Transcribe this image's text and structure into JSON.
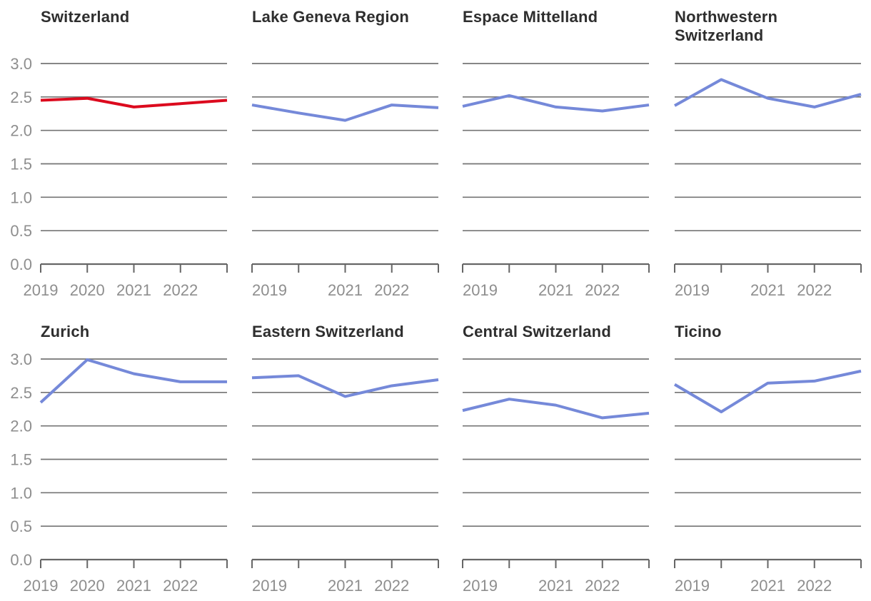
{
  "page": {
    "background": "#ffffff"
  },
  "styles": {
    "series_blue": "#7589D9",
    "highlight_red": "#DC0A1E",
    "gridline": "#747474",
    "axis": "#666666",
    "label": "#8E8E8E",
    "title": "#2E2E2E"
  },
  "chart_data": {
    "type": "line",
    "layout": "small-multiples 2x4",
    "grid": "horizontal",
    "legend": "none",
    "x": [
      2019,
      2020,
      2021,
      2022,
      2023
    ],
    "ylim": [
      0,
      3
    ],
    "y_ticks": [
      "0.0",
      "0.5",
      "1.0",
      "1.5",
      "2.0",
      "2.5",
      "3.0"
    ],
    "charts": [
      {
        "title": "Switzerland",
        "color": "#DC0A1E",
        "highlighted": true,
        "x_tick_labels": [
          "2019",
          "2020",
          "2021",
          "2022",
          ""
        ],
        "values": [
          2.45,
          2.48,
          2.35,
          2.4,
          2.45
        ]
      },
      {
        "title": "Lake Geneva Region",
        "color": "#7589D9",
        "highlighted": false,
        "x_tick_labels": [
          "2019",
          "",
          "2021",
          "2022",
          ""
        ],
        "values": [
          2.38,
          2.26,
          2.15,
          2.38,
          2.34
        ]
      },
      {
        "title": "Espace Mittelland",
        "color": "#7589D9",
        "highlighted": false,
        "x_tick_labels": [
          "2019",
          "",
          "2021",
          "2022",
          ""
        ],
        "values": [
          2.36,
          2.52,
          2.35,
          2.29,
          2.38
        ]
      },
      {
        "title": "Northwestern Switzerland",
        "color": "#7589D9",
        "highlighted": false,
        "x_tick_labels": [
          "2019",
          "",
          "2021",
          "2022",
          ""
        ],
        "values": [
          2.37,
          2.76,
          2.48,
          2.35,
          2.54
        ]
      },
      {
        "title": "Zurich",
        "color": "#7589D9",
        "highlighted": false,
        "x_tick_labels": [
          "2019",
          "2020",
          "2021",
          "2022",
          ""
        ],
        "values": [
          2.35,
          2.99,
          2.78,
          2.66,
          2.66
        ]
      },
      {
        "title": "Eastern Switzerland",
        "color": "#7589D9",
        "highlighted": false,
        "x_tick_labels": [
          "2019",
          "",
          "2021",
          "2022",
          ""
        ],
        "values": [
          2.72,
          2.75,
          2.44,
          2.6,
          2.69
        ]
      },
      {
        "title": "Central Switzerland",
        "color": "#7589D9",
        "highlighted": false,
        "x_tick_labels": [
          "2019",
          "",
          "2021",
          "2022",
          ""
        ],
        "values": [
          2.23,
          2.4,
          2.31,
          2.12,
          2.19
        ]
      },
      {
        "title": "Ticino",
        "color": "#7589D9",
        "highlighted": false,
        "x_tick_labels": [
          "2019",
          "",
          "2021",
          "2022",
          ""
        ],
        "values": [
          2.62,
          2.21,
          2.64,
          2.67,
          2.82
        ]
      }
    ]
  }
}
